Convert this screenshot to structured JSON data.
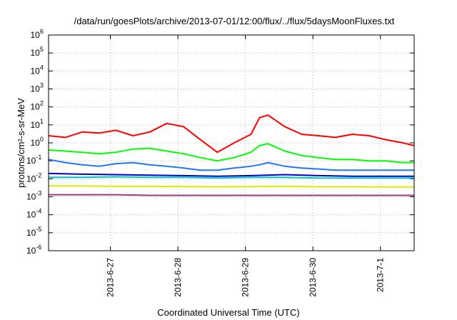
{
  "chart_data": {
    "type": "line",
    "title": "/data/run/goesPlots/archive/2013-07-01/12:00/flux/../flux/5daysMoonFluxes.txt",
    "xlabel": "Coordinated Universal Time (UTC)",
    "ylabel": "protons/cm²-s-sr-MeV",
    "yscale": "log",
    "ylim": [
      1e-06,
      1000000.0
    ],
    "xlim": [
      "2013-06-26 02:00",
      "2013-07-01 12:00"
    ],
    "grid": true,
    "legend": "none",
    "y_ticks": [
      {
        "value": 1e-06,
        "base": "10",
        "exp": "-6"
      },
      {
        "value": 1e-05,
        "base": "10",
        "exp": "-5"
      },
      {
        "value": 0.0001,
        "base": "10",
        "exp": "-4"
      },
      {
        "value": 0.001,
        "base": "10",
        "exp": "-3"
      },
      {
        "value": 0.01,
        "base": "10",
        "exp": "-2"
      },
      {
        "value": 0.1,
        "base": "10",
        "exp": "-1"
      },
      {
        "value": 1,
        "base": "10",
        "exp": "0"
      },
      {
        "value": 10.0,
        "base": "10",
        "exp": "1"
      },
      {
        "value": 100.0,
        "base": "10",
        "exp": "2"
      },
      {
        "value": 1000.0,
        "base": "10",
        "exp": "3"
      },
      {
        "value": 10000.0,
        "base": "10",
        "exp": "4"
      },
      {
        "value": 100000.0,
        "base": "10",
        "exp": "5"
      },
      {
        "value": 1000000.0,
        "base": "10",
        "exp": "6"
      }
    ],
    "x_ticks": [
      {
        "value": "2013-06-27 00:00",
        "label": "2013-6-27"
      },
      {
        "value": "2013-06-28 00:00",
        "label": "2013-6-28"
      },
      {
        "value": "2013-06-29 00:00",
        "label": "2013-6-29"
      },
      {
        "value": "2013-06-30 00:00",
        "label": "2013-6-30"
      },
      {
        "value": "2013-07-01 00:00",
        "label": "2013-7-1"
      }
    ],
    "series": [
      {
        "color": "#ff0000",
        "x": [
          "2013-06-26 02:00",
          "2013-06-26 08:00",
          "2013-06-26 14:00",
          "2013-06-26 20:00",
          "2013-06-27 02:00",
          "2013-06-27 08:00",
          "2013-06-27 14:00",
          "2013-06-27 20:00",
          "2013-06-28 02:00",
          "2013-06-28 08:00",
          "2013-06-28 14:00",
          "2013-06-28 20:00",
          "2013-06-29 02:00",
          "2013-06-29 05:00",
          "2013-06-29 08:00",
          "2013-06-29 14:00",
          "2013-06-29 20:00",
          "2013-06-30 02:00",
          "2013-06-30 08:00",
          "2013-06-30 14:00",
          "2013-06-30 20:00",
          "2013-07-01 02:00",
          "2013-07-01 08:00",
          "2013-07-01 12:00"
        ],
        "y": [
          2.5,
          2.0,
          4.0,
          3.5,
          5.0,
          2.5,
          4.0,
          12.0,
          8.0,
          1.5,
          0.3,
          1.0,
          3.0,
          25.0,
          35.0,
          8.0,
          3.0,
          2.5,
          2.0,
          3.0,
          2.5,
          1.5,
          1.0,
          0.7
        ]
      },
      {
        "color": "#00ff00",
        "x": [
          "2013-06-26 02:00",
          "2013-06-26 08:00",
          "2013-06-26 14:00",
          "2013-06-26 20:00",
          "2013-06-27 02:00",
          "2013-06-27 08:00",
          "2013-06-27 14:00",
          "2013-06-27 20:00",
          "2013-06-28 02:00",
          "2013-06-28 08:00",
          "2013-06-28 14:00",
          "2013-06-28 20:00",
          "2013-06-29 02:00",
          "2013-06-29 05:00",
          "2013-06-29 08:00",
          "2013-06-29 14:00",
          "2013-06-29 20:00",
          "2013-06-30 02:00",
          "2013-06-30 08:00",
          "2013-06-30 14:00",
          "2013-06-30 20:00",
          "2013-07-01 02:00",
          "2013-07-01 08:00",
          "2013-07-01 12:00"
        ],
        "y": [
          0.4,
          0.35,
          0.3,
          0.25,
          0.3,
          0.45,
          0.5,
          0.35,
          0.25,
          0.15,
          0.1,
          0.15,
          0.3,
          0.7,
          0.9,
          0.35,
          0.2,
          0.15,
          0.12,
          0.12,
          0.1,
          0.1,
          0.08,
          0.08
        ]
      },
      {
        "color": "#1e78ff",
        "x": [
          "2013-06-26 02:00",
          "2013-06-26 08:00",
          "2013-06-26 14:00",
          "2013-06-26 20:00",
          "2013-06-27 02:00",
          "2013-06-27 08:00",
          "2013-06-27 14:00",
          "2013-06-27 20:00",
          "2013-06-28 02:00",
          "2013-06-28 08:00",
          "2013-06-28 14:00",
          "2013-06-28 20:00",
          "2013-06-29 02:00",
          "2013-06-29 05:00",
          "2013-06-29 08:00",
          "2013-06-29 14:00",
          "2013-06-29 20:00",
          "2013-06-30 02:00",
          "2013-06-30 08:00",
          "2013-06-30 14:00",
          "2013-06-30 20:00",
          "2013-07-01 02:00",
          "2013-07-01 08:00",
          "2013-07-01 12:00"
        ],
        "y": [
          0.12,
          0.08,
          0.06,
          0.05,
          0.07,
          0.08,
          0.06,
          0.05,
          0.04,
          0.03,
          0.03,
          0.04,
          0.05,
          0.06,
          0.08,
          0.05,
          0.04,
          0.035,
          0.03,
          0.03,
          0.03,
          0.03,
          0.03,
          0.03
        ]
      },
      {
        "color": "#00c8c8",
        "x": [
          "2013-06-26 02:00",
          "2013-06-26 14:00",
          "2013-06-27 02:00",
          "2013-06-27 14:00",
          "2013-06-28 02:00",
          "2013-06-28 14:00",
          "2013-06-29 02:00",
          "2013-06-29 14:00",
          "2013-06-30 02:00",
          "2013-06-30 14:00",
          "2013-07-01 02:00",
          "2013-07-01 12:00"
        ],
        "y": [
          0.012,
          0.012,
          0.013,
          0.012,
          0.012,
          0.011,
          0.012,
          0.012,
          0.011,
          0.011,
          0.011,
          0.011
        ]
      },
      {
        "color": "#0000c8",
        "x": [
          "2013-06-26 02:00",
          "2013-06-26 14:00",
          "2013-06-27 02:00",
          "2013-06-27 14:00",
          "2013-06-28 02:00",
          "2013-06-28 14:00",
          "2013-06-29 02:00",
          "2013-06-29 14:00",
          "2013-06-30 02:00",
          "2013-06-30 14:00",
          "2013-07-01 02:00",
          "2013-07-01 12:00"
        ],
        "y": [
          0.02,
          0.018,
          0.017,
          0.016,
          0.015,
          0.014,
          0.015,
          0.017,
          0.015,
          0.014,
          0.014,
          0.014
        ]
      },
      {
        "color": "#e6e600",
        "x": [
          "2013-06-26 02:00",
          "2013-06-26 14:00",
          "2013-06-27 02:00",
          "2013-06-27 14:00",
          "2013-06-28 02:00",
          "2013-06-28 14:00",
          "2013-06-29 02:00",
          "2013-06-29 14:00",
          "2013-06-30 02:00",
          "2013-06-30 14:00",
          "2013-07-01 02:00",
          "2013-07-01 12:00"
        ],
        "y": [
          0.004,
          0.004,
          0.0038,
          0.0038,
          0.0037,
          0.0036,
          0.0037,
          0.0038,
          0.0036,
          0.0036,
          0.0035,
          0.0035
        ]
      },
      {
        "color": "#963c82",
        "x": [
          "2013-06-26 02:00",
          "2013-06-26 14:00",
          "2013-06-27 02:00",
          "2013-06-27 14:00",
          "2013-06-28 02:00",
          "2013-06-28 14:00",
          "2013-06-29 02:00",
          "2013-06-29 14:00",
          "2013-06-30 02:00",
          "2013-06-30 14:00",
          "2013-07-01 02:00",
          "2013-07-01 12:00"
        ],
        "y": [
          0.0013,
          0.0013,
          0.0013,
          0.0012,
          0.0012,
          0.0012,
          0.0012,
          0.0012,
          0.0012,
          0.0012,
          0.0012,
          0.0012
        ]
      }
    ]
  }
}
